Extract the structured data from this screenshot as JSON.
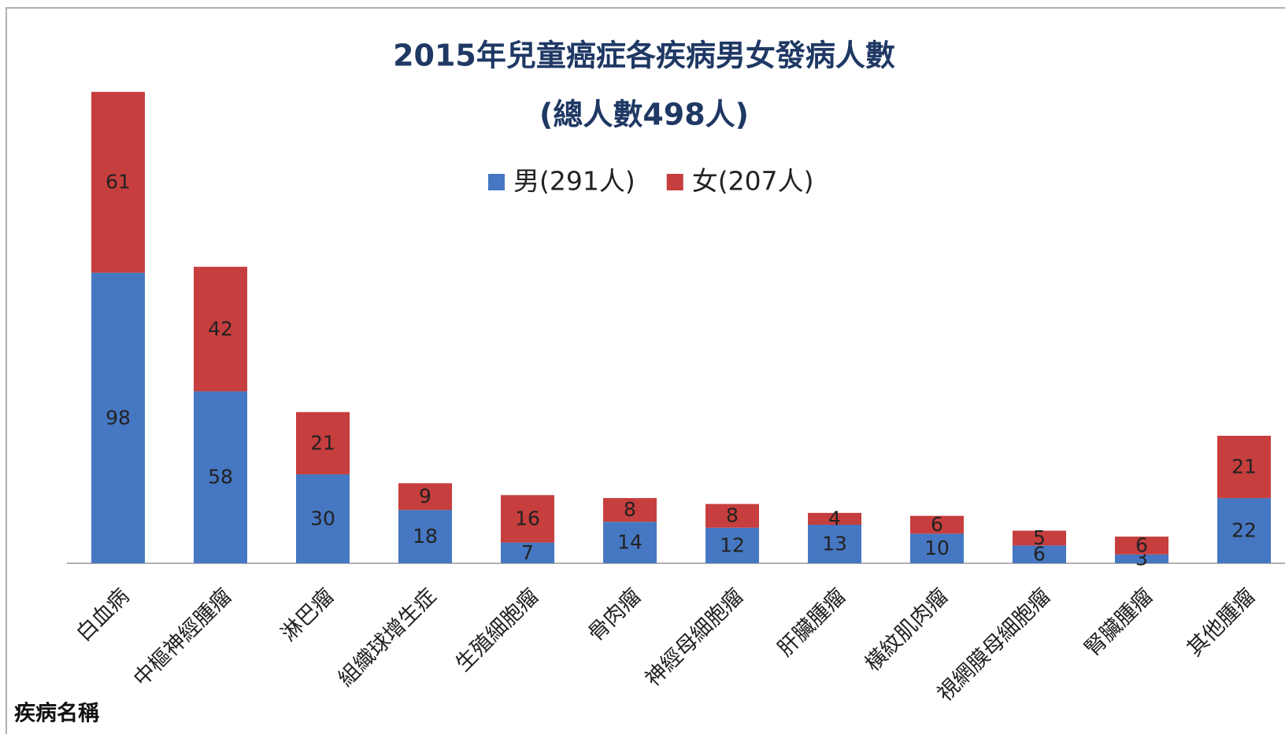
{
  "chart_data": {
    "type": "stacked_bar",
    "title": "2015年兒童癌症各疾病男女發病人數",
    "subtitle": "(總人數498人)",
    "x_label": "疾病名稱",
    "categories": [
      "白血病",
      "中樞神經腫瘤",
      "淋巴瘤",
      "組織球增生症",
      "生殖細胞瘤",
      "骨肉瘤",
      "神經母細胞瘤",
      "肝臟腫瘤",
      "橫紋肌肉瘤",
      "視網膜母細胞瘤",
      "腎臟腫瘤",
      "其他腫瘤"
    ],
    "series": [
      {
        "name": "男(291人)",
        "color": "#4677c2",
        "values": [
          98,
          58,
          30,
          18,
          7,
          14,
          12,
          13,
          10,
          6,
          3,
          22
        ]
      },
      {
        "name": "女(207人)",
        "color": "#c63e3d",
        "values": [
          61,
          42,
          21,
          9,
          16,
          8,
          8,
          4,
          6,
          5,
          6,
          21
        ]
      }
    ],
    "ylim": [
      0,
      160
    ],
    "legend": "top"
  }
}
